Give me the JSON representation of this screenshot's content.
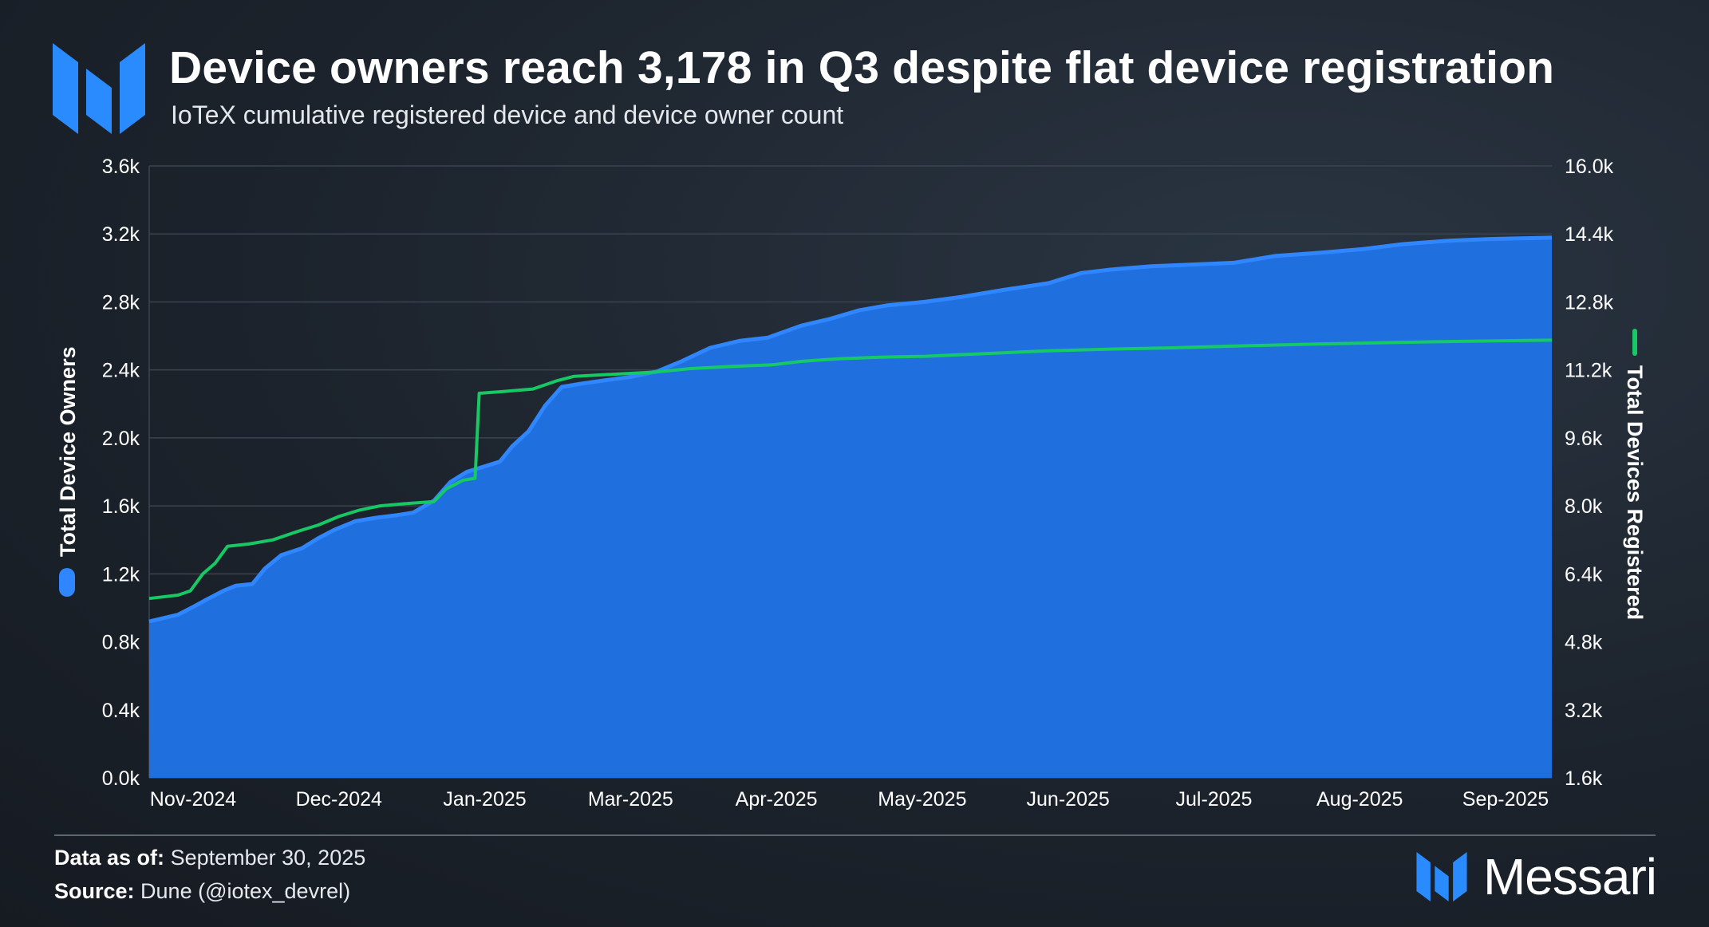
{
  "header": {
    "title": "Device owners reach 3,178 in Q3 despite flat device registration",
    "subtitle": "IoTeX cumulative registered device and device owner count"
  },
  "footer": {
    "data_as_of_label": "Data as of:",
    "data_as_of_value": "September 30, 2025",
    "source_label": "Source:",
    "source_value": "Dune (@iotex_devrel)"
  },
  "brand": {
    "name": "Messari",
    "logo_icon": "messari-logo-icon"
  },
  "colors": {
    "owners": "#1f6fdf",
    "owners_line": "#2f86ff",
    "devices": "#17c964",
    "grid": "#3a4450",
    "axis_text": "#ffffff"
  },
  "chart_data": {
    "type": "area",
    "x_ticks": [
      "Nov-2024",
      "Dec-2024",
      "Jan-2025",
      "Mar-2025",
      "Apr-2025",
      "May-2025",
      "Jun-2025",
      "Jul-2025",
      "Aug-2025",
      "Sep-2025"
    ],
    "y_left": {
      "label": "Total Device Owners",
      "ticks": [
        "0.0k",
        "0.4k",
        "0.8k",
        "1.2k",
        "1.6k",
        "2.0k",
        "2.4k",
        "2.8k",
        "3.2k",
        "3.6k"
      ],
      "range": [
        0,
        3600
      ]
    },
    "y_right": {
      "label": "Total Devices Registered",
      "ticks": [
        "1.6k",
        "3.2k",
        "4.8k",
        "6.4k",
        "8.0k",
        "9.6k",
        "11.2k",
        "12.8k",
        "14.4k",
        "16.0k"
      ],
      "range": [
        1600,
        16000
      ]
    },
    "grid": true,
    "series": [
      {
        "name": "Total Device Owners",
        "type": "area",
        "axis": "left",
        "points": [
          [
            "2024-10-25",
            920
          ],
          [
            "2024-11-01",
            960
          ],
          [
            "2024-11-05",
            1010
          ],
          [
            "2024-11-08",
            1050
          ],
          [
            "2024-11-12",
            1100
          ],
          [
            "2024-11-15",
            1130
          ],
          [
            "2024-11-19",
            1140
          ],
          [
            "2024-11-22",
            1230
          ],
          [
            "2024-11-26",
            1310
          ],
          [
            "2024-12-01",
            1350
          ],
          [
            "2024-12-05",
            1410
          ],
          [
            "2024-12-09",
            1460
          ],
          [
            "2024-12-14",
            1510
          ],
          [
            "2024-12-19",
            1530
          ],
          [
            "2024-12-24",
            1545
          ],
          [
            "2024-12-28",
            1560
          ],
          [
            "2025-01-02",
            1630
          ],
          [
            "2025-01-06",
            1740
          ],
          [
            "2025-01-10",
            1800
          ],
          [
            "2025-01-14",
            1830
          ],
          [
            "2025-01-18",
            1860
          ],
          [
            "2025-01-21",
            1950
          ],
          [
            "2025-01-25",
            2040
          ],
          [
            "2025-01-29",
            2190
          ],
          [
            "2025-02-02",
            2300
          ],
          [
            "2025-02-07",
            2320
          ],
          [
            "2025-02-13",
            2340
          ],
          [
            "2025-02-19",
            2360
          ],
          [
            "2025-02-25",
            2390
          ],
          [
            "2025-03-03",
            2450
          ],
          [
            "2025-03-10",
            2530
          ],
          [
            "2025-03-17",
            2570
          ],
          [
            "2025-03-24",
            2590
          ],
          [
            "2025-04-01",
            2660
          ],
          [
            "2025-04-08",
            2700
          ],
          [
            "2025-04-15",
            2750
          ],
          [
            "2025-04-22",
            2780
          ],
          [
            "2025-05-01",
            2800
          ],
          [
            "2025-05-10",
            2830
          ],
          [
            "2025-05-20",
            2870
          ],
          [
            "2025-05-31",
            2910
          ],
          [
            "2025-06-08",
            2970
          ],
          [
            "2025-06-15",
            2990
          ],
          [
            "2025-06-25",
            3010
          ],
          [
            "2025-07-05",
            3020
          ],
          [
            "2025-07-15",
            3030
          ],
          [
            "2025-07-25",
            3070
          ],
          [
            "2025-08-05",
            3090
          ],
          [
            "2025-08-15",
            3110
          ],
          [
            "2025-08-25",
            3140
          ],
          [
            "2025-09-05",
            3160
          ],
          [
            "2025-09-15",
            3170
          ],
          [
            "2025-09-25",
            3175
          ],
          [
            "2025-09-30",
            3178
          ]
        ]
      },
      {
        "name": "Total Devices Registered",
        "type": "line",
        "axis": "right",
        "points": [
          [
            "2024-10-25",
            5820
          ],
          [
            "2024-11-01",
            5900
          ],
          [
            "2024-11-04",
            6000
          ],
          [
            "2024-11-07",
            6400
          ],
          [
            "2024-11-10",
            6650
          ],
          [
            "2024-11-13",
            7050
          ],
          [
            "2024-11-18",
            7100
          ],
          [
            "2024-11-24",
            7200
          ],
          [
            "2024-11-30",
            7400
          ],
          [
            "2024-12-05",
            7550
          ],
          [
            "2024-12-10",
            7750
          ],
          [
            "2024-12-15",
            7900
          ],
          [
            "2024-12-20",
            8000
          ],
          [
            "2024-12-26",
            8050
          ],
          [
            "2025-01-02",
            8100
          ],
          [
            "2025-01-05",
            8400
          ],
          [
            "2025-01-09",
            8600
          ],
          [
            "2025-01-12",
            8650
          ],
          [
            "2025-01-13",
            10650
          ],
          [
            "2025-01-20",
            10700
          ],
          [
            "2025-01-26",
            10750
          ],
          [
            "2025-02-01",
            10950
          ],
          [
            "2025-02-05",
            11050
          ],
          [
            "2025-02-15",
            11100
          ],
          [
            "2025-02-25",
            11150
          ],
          [
            "2025-03-05",
            11230
          ],
          [
            "2025-03-15",
            11280
          ],
          [
            "2025-03-25",
            11320
          ],
          [
            "2025-04-01",
            11400
          ],
          [
            "2025-04-10",
            11460
          ],
          [
            "2025-04-20",
            11500
          ],
          [
            "2025-05-01",
            11520
          ],
          [
            "2025-05-15",
            11580
          ],
          [
            "2025-05-31",
            11650
          ],
          [
            "2025-06-15",
            11690
          ],
          [
            "2025-06-30",
            11720
          ],
          [
            "2025-07-15",
            11760
          ],
          [
            "2025-07-31",
            11800
          ],
          [
            "2025-08-15",
            11830
          ],
          [
            "2025-08-31",
            11860
          ],
          [
            "2025-09-15",
            11880
          ],
          [
            "2025-09-30",
            11900
          ]
        ]
      }
    ]
  }
}
